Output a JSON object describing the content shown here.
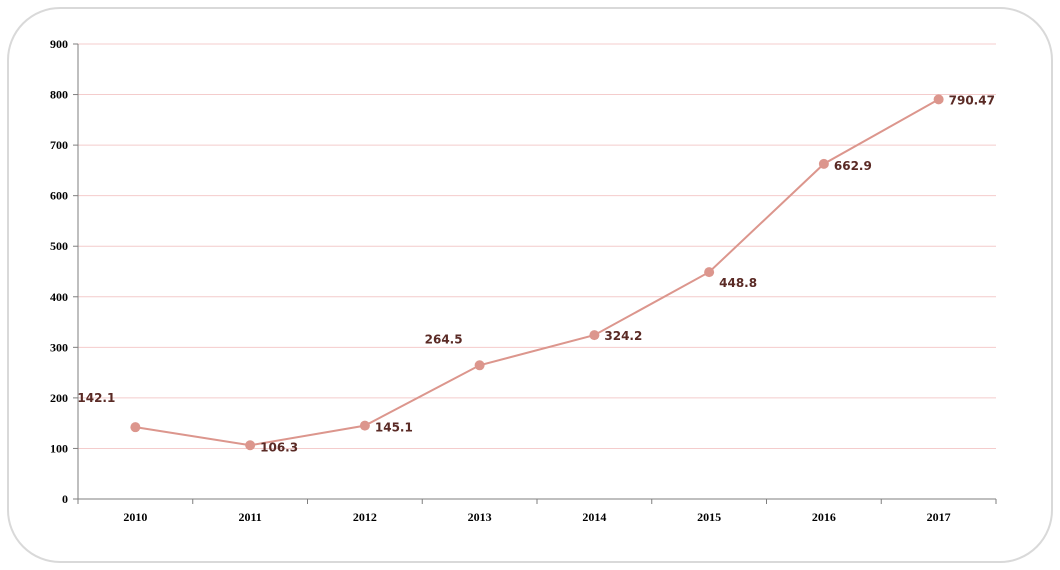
{
  "colors": {
    "series": "#dc968d",
    "grid": "#f4cccc",
    "axis": "#7f7f7f",
    "frame_border": "#d9d9d9",
    "data_label": "#5a2a25"
  },
  "chart_data": {
    "type": "line",
    "title": "",
    "xlabel": "",
    "ylabel": "",
    "categories": [
      "2010",
      "2011",
      "2012",
      "2013",
      "2014",
      "2015",
      "2016",
      "2017"
    ],
    "series": [
      {
        "values": [
          142.1,
          106.3,
          145.1,
          264.5,
          324.2,
          448.8,
          662.9,
          790.47
        ],
        "labels": [
          "142.1",
          "106.3",
          "145.1",
          "264.5",
          "324.2",
          "448.8",
          "662.9",
          "790.47"
        ]
      }
    ],
    "ylim": [
      0,
      900
    ],
    "yticks": [
      0,
      100,
      200,
      300,
      400,
      500,
      600,
      700,
      800,
      900
    ],
    "grid": true,
    "legend": "none"
  }
}
